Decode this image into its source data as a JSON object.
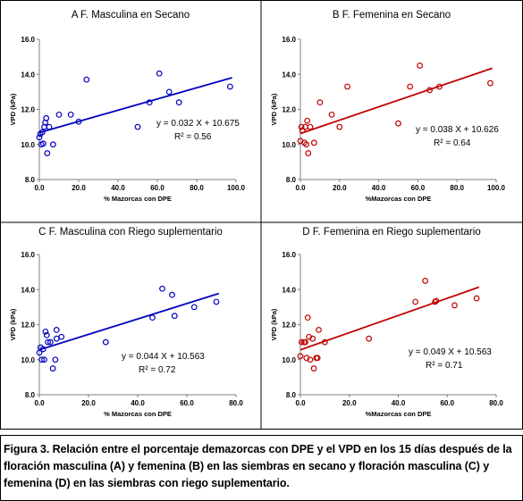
{
  "caption": "Figura 3. Relación entre el porcentaje demazorcas con DPE y el VPD en los 15 días después de la floración masculina (A) y femenina (B) en las siembras en secano y floración masculina (C) y femenina (D) en las siembras con riego suplementario.",
  "chart_data": [
    {
      "type": "scatter",
      "title": "A F. Masculina en Secano",
      "xlabel": "% Mazorcas con DPE",
      "ylabel": "VPD (kPa)",
      "xlim": [
        0,
        100
      ],
      "ylim": [
        8,
        16
      ],
      "xticks": [
        "0.0",
        "20.0",
        "40.0",
        "60.0",
        "80.0",
        "100.0"
      ],
      "yticks": [
        "8.0",
        "10.0",
        "12.0",
        "14.0",
        "16.0"
      ],
      "color": "#0000c0",
      "equation": "y = 0.032 X + 10.675",
      "r2": "R² = 0.56",
      "trend": {
        "slope": 0.032,
        "intercept": 10.675,
        "x_range": [
          0,
          98
        ]
      },
      "points": [
        [
          0,
          10.4
        ],
        [
          0.5,
          10.6
        ],
        [
          1,
          10.0
        ],
        [
          1.5,
          10.7
        ],
        [
          2,
          10.05
        ],
        [
          2.5,
          11.0
        ],
        [
          3,
          11.25
        ],
        [
          3.5,
          11.5
        ],
        [
          4,
          9.5
        ],
        [
          5,
          11.0
        ],
        [
          7,
          10.0
        ],
        [
          10,
          11.7
        ],
        [
          16,
          11.7
        ],
        [
          20,
          11.3
        ],
        [
          24,
          13.7
        ],
        [
          50,
          11.0
        ],
        [
          56,
          12.4
        ],
        [
          61,
          14.05
        ],
        [
          66,
          13.0
        ],
        [
          71,
          12.4
        ],
        [
          97,
          13.3
        ]
      ]
    },
    {
      "type": "scatter",
      "title": "B F. Femenina en Secano",
      "xlabel": "%Mazorcas con DPE",
      "ylabel": "VPD (kPa)",
      "xlim": [
        0,
        100
      ],
      "ylim": [
        8,
        16
      ],
      "xticks": [
        "0.0",
        "20.0",
        "40.0",
        "60.0",
        "80.0",
        "100.0"
      ],
      "yticks": [
        "8.0",
        "10.0",
        "12.0",
        "14.0",
        "16.0"
      ],
      "color": "#c00000",
      "equation": "y = 0.038 X + 10.626",
      "r2": "R² = 0.64",
      "trend": {
        "slope": 0.038,
        "intercept": 10.626,
        "x_range": [
          0,
          98
        ]
      },
      "points": [
        [
          0,
          10.2
        ],
        [
          0.5,
          11.0
        ],
        [
          1,
          10.8
        ],
        [
          2,
          10.1
        ],
        [
          2.5,
          11.0
        ],
        [
          3,
          10.0
        ],
        [
          3.5,
          11.35
        ],
        [
          4,
          9.5
        ],
        [
          5,
          11.0
        ],
        [
          7,
          10.1
        ],
        [
          10,
          12.4
        ],
        [
          16,
          11.7
        ],
        [
          20,
          11.0
        ],
        [
          24,
          13.3
        ],
        [
          50,
          11.2
        ],
        [
          56,
          13.3
        ],
        [
          61,
          14.5
        ],
        [
          66,
          13.1
        ],
        [
          71,
          13.3
        ],
        [
          97,
          13.5
        ]
      ]
    },
    {
      "type": "scatter",
      "title": "C F. Masculina con Riego suplementario",
      "xlabel": "% Mazorcas con DPE",
      "ylabel": "VPD (kPa)",
      "xlim": [
        0,
        80
      ],
      "ylim": [
        8,
        16
      ],
      "xticks": [
        "0.0",
        "20.0",
        "40.0",
        "60.0",
        "80.0"
      ],
      "yticks": [
        "8.0",
        "10.0",
        "12.0",
        "14.0",
        "16.0"
      ],
      "color": "#0000c0",
      "equation": "y = 0.044 X + 10.563",
      "r2": "R² = 0.72",
      "trend": {
        "slope": 0.044,
        "intercept": 10.563,
        "x_range": [
          0,
          73
        ]
      },
      "points": [
        [
          0,
          10.4
        ],
        [
          0.5,
          10.7
        ],
        [
          1,
          10.0
        ],
        [
          1.5,
          10.6
        ],
        [
          2,
          10.0
        ],
        [
          2.5,
          11.6
        ],
        [
          3,
          11.4
        ],
        [
          3.5,
          11.0
        ],
        [
          4.5,
          11.0
        ],
        [
          5.5,
          9.5
        ],
        [
          6.5,
          10.0
        ],
        [
          7,
          11.2
        ],
        [
          7,
          11.7
        ],
        [
          9,
          11.3
        ],
        [
          27,
          11.0
        ],
        [
          46,
          12.4
        ],
        [
          50,
          14.05
        ],
        [
          54,
          13.7
        ],
        [
          55,
          12.5
        ],
        [
          63,
          13.0
        ],
        [
          72,
          13.3
        ]
      ]
    },
    {
      "type": "scatter",
      "title": "D F. Femenina en Riego suplementario",
      "xlabel": "%Mazorcas con DPE",
      "ylabel": "VPD (kPa)",
      "xlim": [
        0,
        80
      ],
      "ylim": [
        8,
        16
      ],
      "xticks": [
        "0.0",
        "20.0",
        "40.0",
        "60.0",
        "80.0"
      ],
      "yticks": [
        "8.0",
        "10.0",
        "12.0",
        "14.0",
        "16.0"
      ],
      "color": "#c00000",
      "equation": "y = 0.049 X + 10.563",
      "r2": "R² = 0.71",
      "trend": {
        "slope": 0.049,
        "intercept": 10.563,
        "x_range": [
          0,
          73
        ]
      },
      "points": [
        [
          0,
          10.2
        ],
        [
          0.5,
          11.0
        ],
        [
          1.5,
          11.0
        ],
        [
          2,
          11.0
        ],
        [
          2.5,
          10.1
        ],
        [
          3,
          12.4
        ],
        [
          3.5,
          11.3
        ],
        [
          4,
          10.0
        ],
        [
          5,
          11.2
        ],
        [
          5.5,
          9.5
        ],
        [
          6.5,
          10.1
        ],
        [
          7,
          10.1
        ],
        [
          7.5,
          11.7
        ],
        [
          10,
          11.0
        ],
        [
          28,
          11.2
        ],
        [
          47,
          13.3
        ],
        [
          51,
          14.5
        ],
        [
          55,
          13.3
        ],
        [
          55.5,
          13.35
        ],
        [
          63,
          13.1
        ],
        [
          72,
          13.5
        ]
      ]
    }
  ]
}
